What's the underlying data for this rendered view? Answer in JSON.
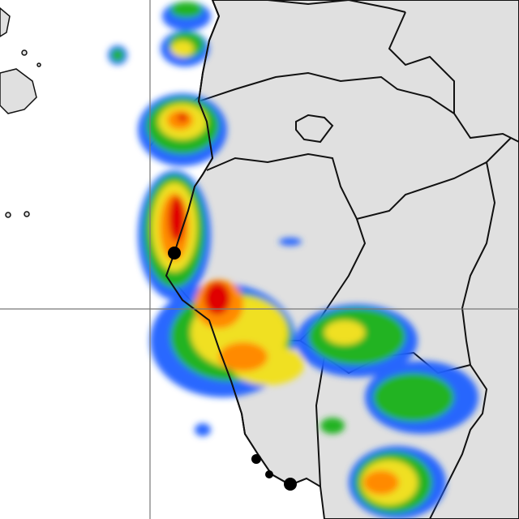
{
  "map": {
    "colors": {
      "ocean": "#ffffff",
      "land": "#e0e0e0",
      "border": "#111111",
      "gridline": "#777777",
      "precip_light": "#1f5fff",
      "precip_moderate": "#22b322",
      "precip_heavy": "#f0e020",
      "precip_intense": "#ff8a00",
      "precip_extreme": "#e00000"
    },
    "markers": [
      "city-marker",
      "city-marker",
      "city-marker"
    ]
  }
}
